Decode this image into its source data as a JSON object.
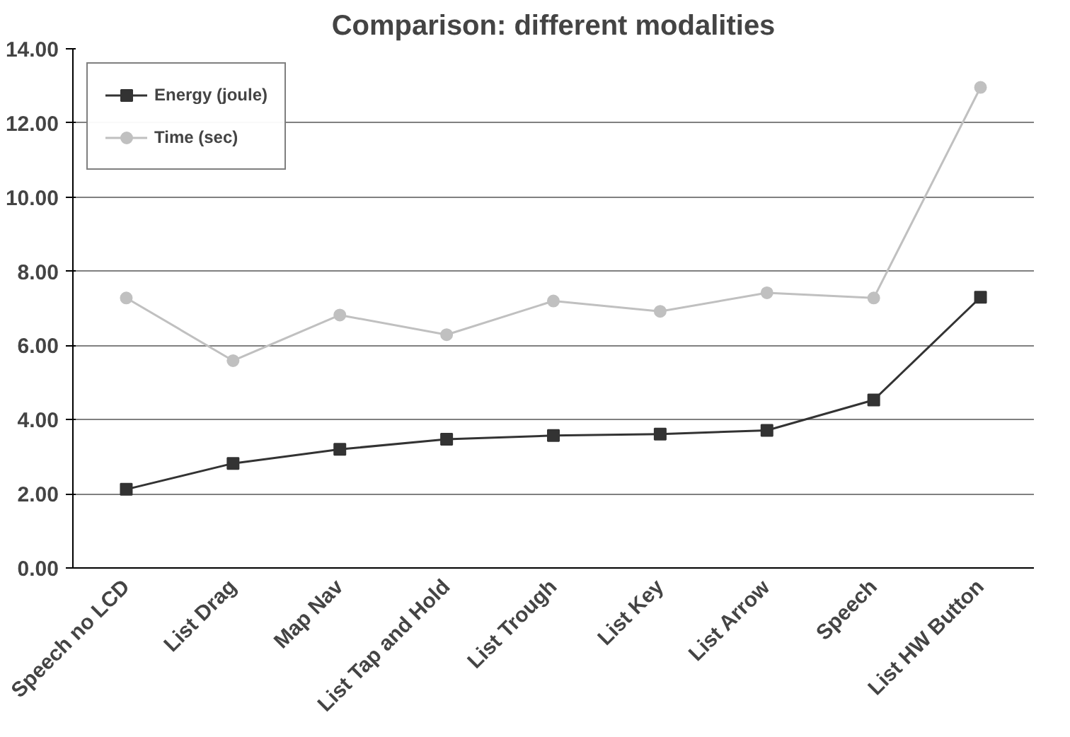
{
  "chart_data": {
    "type": "line",
    "title": "Comparison: different modalities",
    "categories": [
      "Speech no LCD",
      "List Drag",
      "Map Nav",
      "List Tap and Hold",
      "List Trough",
      "List Key",
      "List Arrow",
      "Speech",
      "List HW Button"
    ],
    "series": [
      {
        "name": "Energy (joule)",
        "color": "#333333",
        "marker": "square",
        "values": [
          2.12,
          2.82,
          3.2,
          3.47,
          3.57,
          3.61,
          3.71,
          4.53,
          7.3
        ]
      },
      {
        "name": "Time (sec)",
        "color": "#c0c0c0",
        "marker": "circle",
        "values": [
          7.28,
          5.59,
          6.82,
          6.29,
          7.2,
          6.92,
          7.42,
          7.28,
          12.96
        ]
      }
    ],
    "ylim": [
      0,
      14
    ],
    "yticks": [
      {
        "value": 0,
        "label": "0.00"
      },
      {
        "value": 2,
        "label": "2.00"
      },
      {
        "value": 4,
        "label": "4.00"
      },
      {
        "value": 6,
        "label": "6.00"
      },
      {
        "value": 8,
        "label": "8.00"
      },
      {
        "value": 10,
        "label": "10.00"
      },
      {
        "value": 12,
        "label": "12.00"
      },
      {
        "value": 14,
        "label": "14.00"
      }
    ],
    "grid": "y",
    "legend": "top left",
    "line_style": "solid"
  }
}
